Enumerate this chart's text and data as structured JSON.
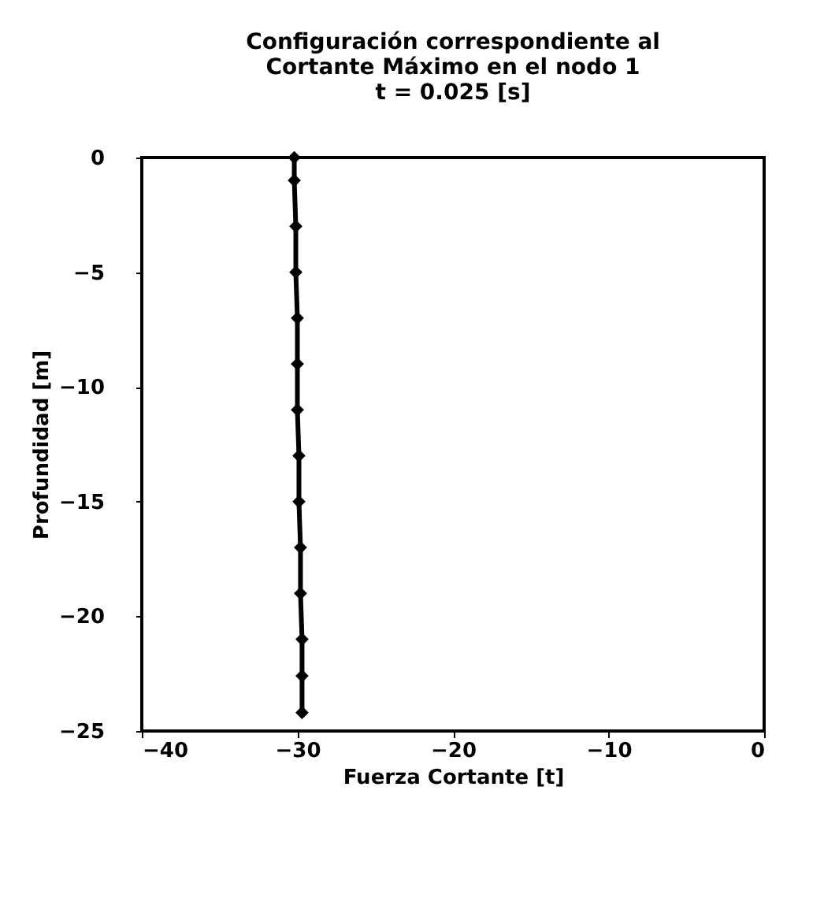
{
  "chart_data": {
    "type": "line",
    "title": "Configuración correspondiente al\nCortante Máximo en el nodo 1\nt = 0.025 [s]",
    "xlabel": "Fuerza Cortante [t]",
    "ylabel": "Profundidad [m]",
    "series": [
      {
        "color": "#000000",
        "x": [
          -30.2,
          -30.2,
          -30.1,
          -30.1,
          -30.0,
          -30.0,
          -30.0,
          -29.9,
          -29.9,
          -29.8,
          -29.8,
          -29.7,
          -29.7,
          -29.7
        ],
        "values": [
          0,
          -1,
          -3,
          -5,
          -7,
          -9,
          -11,
          -13,
          -15,
          -17,
          -19,
          -21,
          -22.6,
          -24.2
        ]
      }
    ],
    "xlim": [
      -40,
      0
    ],
    "xticks": [
      -40,
      -30,
      -20,
      -10,
      0
    ],
    "ylim": [
      -25,
      0
    ],
    "yticks": [
      -25,
      -20,
      -15,
      -10,
      -5,
      0
    ],
    "grid": false,
    "marker": "diamond",
    "line_style": "solid"
  }
}
